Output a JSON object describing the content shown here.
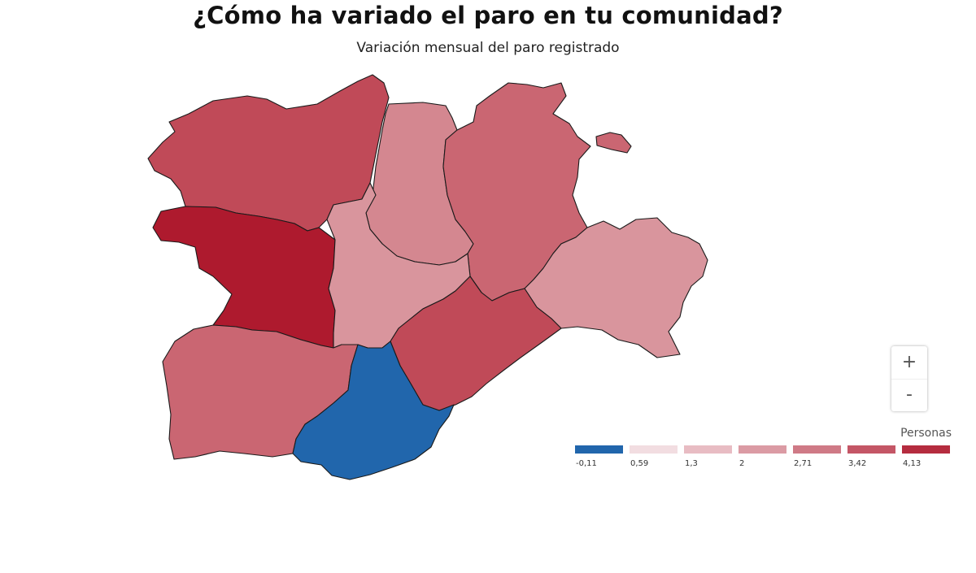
{
  "title": "¿Cómo ha variado el paro en tu comunidad?",
  "subtitle": "Variación mensual del paro registrado",
  "zoom": {
    "in_label": "+",
    "out_label": "-"
  },
  "legend": {
    "title": "Personas",
    "bins": [
      {
        "label": "-0,11",
        "color": "#2166ac"
      },
      {
        "label": "0,59",
        "color": "#f2dde1"
      },
      {
        "label": "1,3",
        "color": "#e8bcc3"
      },
      {
        "label": "2",
        "color": "#db9ba4"
      },
      {
        "label": "2,71",
        "color": "#cf7a86"
      },
      {
        "label": "3,42",
        "color": "#c45666"
      },
      {
        "label": "4,13",
        "color": "#b52c3f"
      }
    ]
  },
  "chart_data": {
    "type": "choropleth",
    "title": "¿Cómo ha variado el paro en tu comunidad?",
    "subtitle": "Variación mensual del paro registrado",
    "legend_title": "Personas",
    "legend_position": "bottom-right",
    "scale_breaks": [
      -0.11,
      0.59,
      1.3,
      2,
      2.71,
      3.42,
      4.13
    ],
    "regions": [
      {
        "id": "region-north-west",
        "color": "#c04a58"
      },
      {
        "id": "region-north-central",
        "color": "#d48790"
      },
      {
        "id": "region-north-east",
        "color": "#ca6672"
      },
      {
        "id": "region-east-enclave",
        "color": "#ca6672"
      },
      {
        "id": "region-west",
        "color": "#ae1a2e"
      },
      {
        "id": "region-central",
        "color": "#d9959d"
      },
      {
        "id": "region-east",
        "color": "#d9959d"
      },
      {
        "id": "region-south-west",
        "color": "#ca6672"
      },
      {
        "id": "region-south-east",
        "color": "#c04a58"
      },
      {
        "id": "region-south",
        "color": "#2166ac"
      }
    ]
  }
}
